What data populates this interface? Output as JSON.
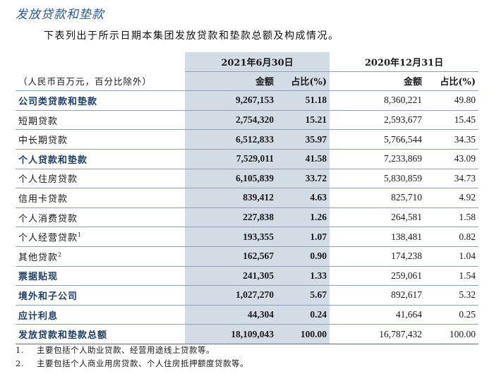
{
  "title": "发放贷款和垫款",
  "intro": "下表列出于所示日期本集团发放贷款和垫款总额及构成情况。",
  "periods": {
    "current": "2021年6月30日",
    "previous": "2020年12月31日"
  },
  "units": "（人民币百万元，百分比除外）",
  "headers": {
    "amount": "金额",
    "share": "占比(%)"
  },
  "rows": [
    {
      "label": "公司类贷款和垫款",
      "bold": true,
      "cur_amount": "9,267,153",
      "cur_share": "51.18",
      "prev_amount": "8,360,221",
      "prev_share": "49.80"
    },
    {
      "label": "短期贷款",
      "bold": false,
      "cur_amount": "2,754,320",
      "cur_share": "15.21",
      "prev_amount": "2,593,677",
      "prev_share": "15.45"
    },
    {
      "label": "中长期贷款",
      "bold": false,
      "cur_amount": "6,512,833",
      "cur_share": "35.97",
      "prev_amount": "5,766,544",
      "prev_share": "34.35"
    },
    {
      "label": "个人贷款和垫款",
      "bold": true,
      "cur_amount": "7,529,011",
      "cur_share": "41.58",
      "prev_amount": "7,233,869",
      "prev_share": "43.09"
    },
    {
      "label": "个人住房贷款",
      "bold": false,
      "cur_amount": "6,105,839",
      "cur_share": "33.72",
      "prev_amount": "5,830,859",
      "prev_share": "34.73"
    },
    {
      "label": "信用卡贷款",
      "bold": false,
      "cur_amount": "839,412",
      "cur_share": "4.63",
      "prev_amount": "825,710",
      "prev_share": "4.92"
    },
    {
      "label": "个人消费贷款",
      "bold": false,
      "cur_amount": "227,838",
      "cur_share": "1.26",
      "prev_amount": "264,581",
      "prev_share": "1.58"
    },
    {
      "label": "个人经营贷款",
      "sup": "1",
      "bold": false,
      "cur_amount": "193,355",
      "cur_share": "1.07",
      "prev_amount": "138,481",
      "prev_share": "0.82"
    },
    {
      "label": "其他贷款",
      "sup": "2",
      "bold": false,
      "cur_amount": "162,567",
      "cur_share": "0.90",
      "prev_amount": "174,238",
      "prev_share": "1.04"
    },
    {
      "label": "票据贴现",
      "bold": true,
      "cur_amount": "241,305",
      "cur_share": "1.33",
      "prev_amount": "259,061",
      "prev_share": "1.54"
    },
    {
      "label": "境外和子公司",
      "bold": true,
      "cur_amount": "1,027,270",
      "cur_share": "5.67",
      "prev_amount": "892,617",
      "prev_share": "5.32"
    },
    {
      "label": "应计利息",
      "bold": true,
      "cur_amount": "44,304",
      "cur_share": "0.24",
      "prev_amount": "41,664",
      "prev_share": "0.25"
    },
    {
      "label": "发放贷款和垫款总额",
      "bold": true,
      "total": true,
      "cur_amount": "18,109,043",
      "cur_share": "100.00",
      "prev_amount": "16,787,432",
      "prev_share": "100.00"
    }
  ],
  "notes": [
    {
      "num": "1.",
      "text": "主要包括个人助业贷款、经营用途线上贷款等。"
    },
    {
      "num": "2.",
      "text": "主要包括个人商业用房贷款、个人住房抵押额度贷款等。"
    }
  ]
}
